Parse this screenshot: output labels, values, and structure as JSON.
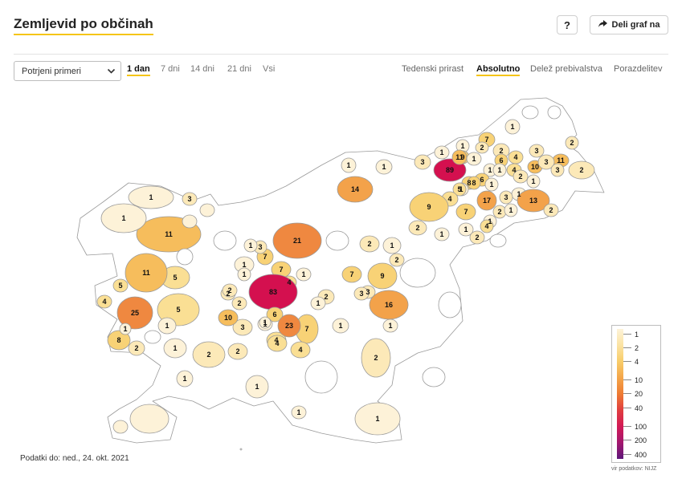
{
  "title": "Zemljevid po občinah",
  "header": {
    "help_label": "?",
    "share_label": "Deli graf na"
  },
  "filter": {
    "selected": "Potrjeni primeri"
  },
  "ranges": [
    "1 dan",
    "7 dni",
    "14 dni",
    "21 dni",
    "Vsi"
  ],
  "active_range": "1 dan",
  "metrics": [
    "Tedenski prirast",
    "Absolutno",
    "Delež prebivalstva",
    "Porazdelitev"
  ],
  "active_metric": "Absolutno",
  "footnote": "Podatki do: ned., 24. okt. 2021",
  "source": "vir podatkov: NIJZ",
  "legend": {
    "ticks": [
      "1",
      "2",
      "4",
      "10",
      "20",
      "40",
      "100",
      "200",
      "400"
    ]
  },
  "colors": {
    "accent": "#f5c518",
    "max": "#5e177a"
  },
  "map_values": [
    "1",
    "7",
    "2",
    "1",
    "2",
    "2",
    "4",
    "3",
    "11",
    "10",
    "2",
    "9",
    "1",
    "6",
    "3",
    "3",
    "8",
    "1",
    "3",
    "89",
    "11",
    "1",
    "4",
    "1",
    "6",
    "1",
    "1",
    "14",
    "5",
    "8",
    "2",
    "1",
    "1",
    "3",
    "13",
    "4",
    "17",
    "2",
    "2",
    "9",
    "7",
    "1",
    "1",
    "2",
    "1",
    "1",
    "4",
    "2",
    "1",
    "1",
    "11",
    "21",
    "7",
    "1",
    "7",
    "2",
    "1",
    "3",
    "1",
    "2",
    "5",
    "4",
    "5",
    "11",
    "7",
    "4",
    "9",
    "1",
    "2",
    "1",
    "83",
    "3",
    "2",
    "1",
    "3",
    "25",
    "16",
    "4",
    "5",
    "6",
    "1",
    "10",
    "23",
    "2",
    "2",
    "1",
    "7",
    "1",
    "3",
    "8",
    "1",
    "4",
    "4",
    "2",
    "1",
    "2",
    "2",
    "2",
    "1",
    "1",
    "1",
    "1",
    "1",
    "1",
    "3",
    "1",
    "1"
  ]
}
